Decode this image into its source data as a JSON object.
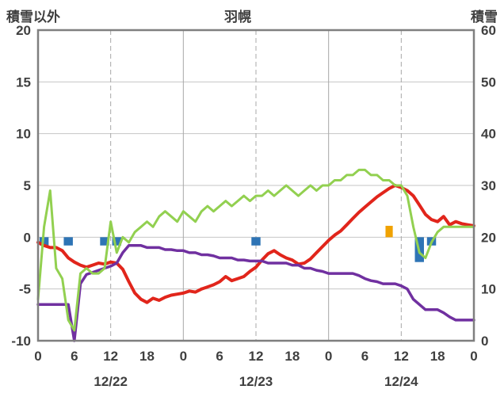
{
  "title": "羽幌",
  "chart_data": {
    "type": "line",
    "title": "羽幌",
    "left_axis": {
      "label": "積雪以外",
      "min": -10,
      "max": 20,
      "ticks": [
        20,
        15,
        10,
        5,
        0,
        -5,
        -10
      ]
    },
    "right_axis": {
      "label": "積雪",
      "min": 0,
      "max": 60,
      "ticks": [
        60,
        50,
        40,
        30,
        20,
        10,
        0
      ]
    },
    "x_axis": {
      "hours_total": 72,
      "tick_interval": 6,
      "tick_labels": [
        "0",
        "6",
        "12",
        "18",
        "0",
        "6",
        "12",
        "18",
        "0",
        "6",
        "12",
        "18",
        "0"
      ],
      "date_labels": [
        {
          "label": "12/22",
          "hour": 12
        },
        {
          "label": "12/23",
          "hour": 36
        },
        {
          "label": "12/24",
          "hour": 60
        }
      ]
    },
    "grid": {
      "h_lines": [
        15,
        10,
        5,
        0,
        -5
      ],
      "v_lines": [
        {
          "hour": 12,
          "style": "dashed"
        },
        {
          "hour": 24,
          "style": "solid"
        },
        {
          "hour": 36,
          "style": "dashed"
        },
        {
          "hour": 48,
          "style": "solid"
        },
        {
          "hour": 60,
          "style": "dashed"
        }
      ],
      "grid_color": "#c6c6c6",
      "frame_color": "#7f7f7f",
      "text_color": "#3f3f3f"
    },
    "series": [
      {
        "name": "red-line",
        "axis": "left",
        "color": "#e1251b",
        "width": 4,
        "values": [
          -0.5,
          -0.8,
          -1.0,
          -1.0,
          -1.3,
          -2.0,
          -2.4,
          -2.7,
          -2.9,
          -2.7,
          -2.5,
          -2.6,
          -2.4,
          -2.5,
          -3.1,
          -4.3,
          -5.4,
          -6.0,
          -6.3,
          -5.9,
          -6.1,
          -5.8,
          -5.6,
          -5.5,
          -5.4,
          -5.2,
          -5.3,
          -5.0,
          -4.8,
          -4.6,
          -4.3,
          -3.8,
          -4.2,
          -4.0,
          -3.8,
          -3.3,
          -2.9,
          -2.2,
          -1.6,
          -1.3,
          -1.7,
          -2.0,
          -2.2,
          -2.6,
          -2.5,
          -2.1,
          -1.5,
          -0.9,
          -0.3,
          0.2,
          0.6,
          1.2,
          1.8,
          2.4,
          2.9,
          3.4,
          3.9,
          4.3,
          4.7,
          5.0,
          4.8,
          4.5,
          4.0,
          3.1,
          2.2,
          1.7,
          1.5,
          2.0,
          1.2,
          1.5,
          1.3,
          1.2,
          1.1
        ]
      },
      {
        "name": "purple-line",
        "axis": "left",
        "color": "#7030a0",
        "width": 3.5,
        "values": [
          -6.5,
          -6.5,
          -6.5,
          -6.5,
          -6.5,
          -6.5,
          -10.0,
          -4.5,
          -3.6,
          -3.4,
          -3.2,
          -3.0,
          -2.8,
          -2.5,
          -1.5,
          -0.8,
          -0.8,
          -0.8,
          -1.0,
          -1.0,
          -1.0,
          -1.2,
          -1.2,
          -1.3,
          -1.3,
          -1.5,
          -1.5,
          -1.7,
          -1.7,
          -1.8,
          -2.0,
          -2.0,
          -2.0,
          -2.2,
          -2.2,
          -2.3,
          -2.3,
          -2.3,
          -2.5,
          -2.5,
          -2.5,
          -2.5,
          -2.7,
          -2.7,
          -3.0,
          -3.0,
          -3.2,
          -3.3,
          -3.5,
          -3.5,
          -3.5,
          -3.5,
          -3.5,
          -3.7,
          -4.0,
          -4.2,
          -4.3,
          -4.5,
          -4.5,
          -4.5,
          -4.7,
          -5.0,
          -6.0,
          -6.5,
          -7.0,
          -7.0,
          -7.0,
          -7.3,
          -7.7,
          -8.0,
          -8.0,
          -8.0,
          -8.0
        ]
      },
      {
        "name": "green-line",
        "axis": "right",
        "color": "#92d050",
        "width": 3,
        "values": [
          8,
          22,
          29,
          14,
          12,
          4,
          2,
          13,
          14,
          13,
          13,
          14,
          23,
          17,
          20,
          19,
          21,
          22,
          23,
          22,
          24,
          25,
          24,
          23,
          25,
          24,
          23,
          25,
          26,
          25,
          26,
          27,
          26,
          27,
          28,
          27,
          28,
          28,
          29,
          28,
          29,
          30,
          29,
          28,
          29,
          30,
          29,
          30,
          30,
          31,
          31,
          32,
          32,
          33,
          33,
          32,
          32,
          31,
          31,
          30,
          30,
          28,
          22,
          17,
          16,
          19,
          21,
          22,
          22,
          22,
          22,
          22,
          22
        ]
      }
    ],
    "bars": [
      {
        "name": "blue-bars",
        "axis": "left",
        "color": "#2e74b5",
        "direction": "down",
        "bar_width_hours": 1.5,
        "items": [
          {
            "hour": 1,
            "value": 0.8
          },
          {
            "hour": 5,
            "value": 0.8
          },
          {
            "hour": 11,
            "value": 0.8
          },
          {
            "hour": 13,
            "value": 0.8
          },
          {
            "hour": 36,
            "value": 0.8
          },
          {
            "hour": 63,
            "value": 2.4
          },
          {
            "hour": 65,
            "value": 0.8
          }
        ]
      },
      {
        "name": "orange-bar",
        "axis": "left",
        "color": "#f0a202",
        "direction": "up",
        "bar_width_hours": 1.2,
        "items": [
          {
            "hour": 58,
            "value": 1.1
          }
        ]
      }
    ]
  }
}
